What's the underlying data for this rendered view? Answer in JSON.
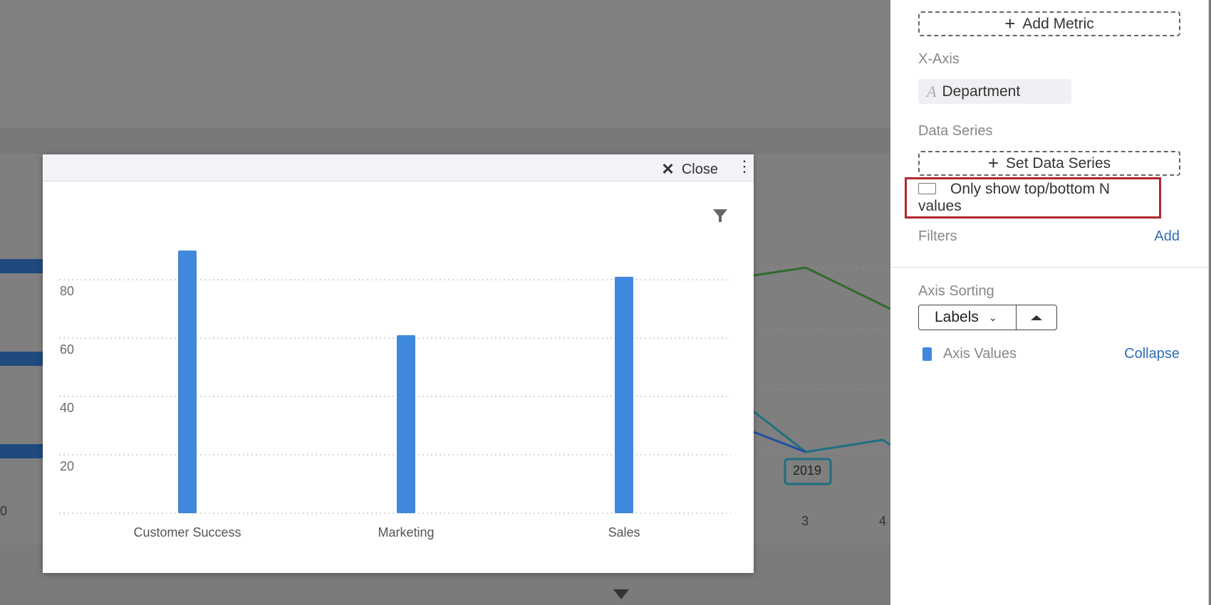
{
  "background": {
    "line_chart": {
      "x_ticks": [
        "3",
        "4"
      ],
      "tooltip": "2019",
      "colors": [
        "#2e6b2e",
        "#1e6f80",
        "#1f4fa0"
      ]
    }
  },
  "modal": {
    "close_label": "Close",
    "close_icon": "x-icon",
    "menu_icon": "kebab-icon",
    "filter_icon": "funnel-icon"
  },
  "chart_data": {
    "type": "bar",
    "categories": [
      "Customer Success",
      "Marketing",
      "Sales"
    ],
    "values": [
      90,
      61,
      81
    ],
    "y_ticks": [
      "20",
      "40",
      "60",
      "80"
    ],
    "ylim": [
      0,
      100
    ],
    "grid": true,
    "bar_color": "#3f88de"
  },
  "sidebar": {
    "add_metric": "Add Metric",
    "x_axis_label": "X-Axis",
    "x_axis_value": "Department",
    "data_series_label": "Data Series",
    "set_data_series": "Set Data Series",
    "top_bottom_line1": "Only show top/bottom N",
    "top_bottom_line2": "values",
    "top_bottom_checked": false,
    "filters_label": "Filters",
    "filters_add": "Add",
    "axis_sorting_label": "Axis Sorting",
    "axis_sorting_value": "Labels",
    "axis_values_label": "Axis Values",
    "collapse": "Collapse",
    "highlight_color": "#b0272e",
    "accent_color": "#2f6db5"
  }
}
